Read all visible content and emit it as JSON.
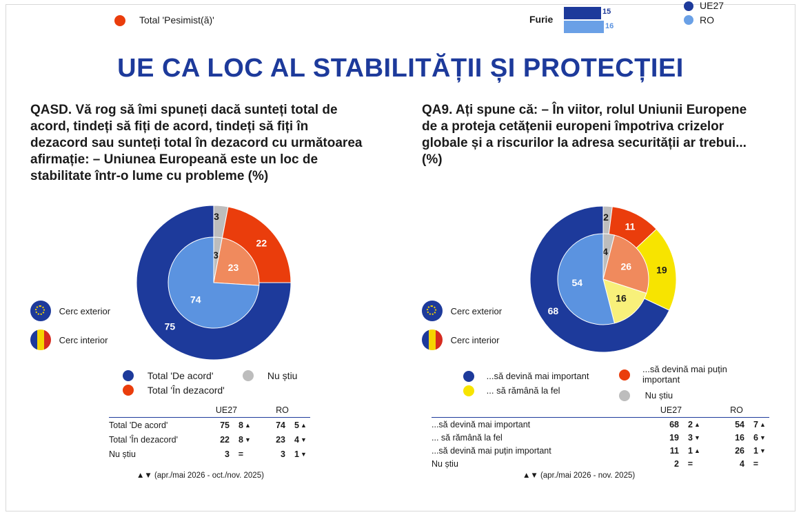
{
  "top": {
    "pessimist_label": "Total 'Pesimist(ă)'",
    "furie_label": "Furie",
    "furie_ue": "15",
    "furie_ro": "16",
    "legend_ue": "UE27",
    "legend_ro": "RO"
  },
  "title": "UE CA LOC AL STABILITĂȚII ȘI PROTECȚIEI",
  "left": {
    "question": "QASD. Vă rog să îmi spuneți dacă sunteți total de acord, tindeți să fiți de acord, tindeți să fiți în dezacord sau sunteți total în dezacord cu următoarea afirmație: – Uniunea Europeană este un loc de stabilitate într-o lume cu probleme (%)",
    "q_lines": [
      "QASD. Vă rog să îmi spuneți dacă sunteți total de",
      "acord, tindeți să fiți de acord, tindeți să fiți în",
      "dezacord sau sunteți total în dezacord cu următoarea",
      "afirmație: – Uniunea Europeană este un loc de",
      "stabilitate într-o lume cu probleme (%)"
    ],
    "outer_label": "Cerc exterior",
    "inner_label": "Cerc interior",
    "legend": [
      "Total 'De acord'",
      "Total 'În dezacord'",
      "Nu știu"
    ],
    "table": {
      "headers": [
        "UE27",
        "RO"
      ],
      "rows": [
        {
          "label": "Total 'De acord'",
          "ue": "75",
          "ue_ch": "8",
          "ue_ar": "▲",
          "ro": "74",
          "ro_ch": "5",
          "ro_ar": "▲"
        },
        {
          "label": "Total 'În dezacord'",
          "ue": "22",
          "ue_ch": "8",
          "ue_ar": "▼",
          "ro": "23",
          "ro_ch": "4",
          "ro_ar": "▼"
        },
        {
          "label": "Nu știu",
          "ue": "3",
          "ue_ch": "=",
          "ue_ar": "",
          "ro": "3",
          "ro_ch": "1",
          "ro_ar": "▼"
        }
      ],
      "footnote": "▲▼ (apr./mai 2026 - oct./nov. 2025)"
    }
  },
  "right": {
    "question": "QA9. Ați spune că: – În viitor, rolul Uniunii Europene de a proteja cetățenii europeni împotriva crizelor globale și a riscurilor la adresa securității ar trebui... (%)",
    "q_lines": [
      "QA9. Ați spune că: – În viitor, rolul Uniunii Europene",
      "de a proteja cetățenii europeni împotriva crizelor",
      "globale și a riscurilor la adresa securității ar trebui...",
      "(%)"
    ],
    "outer_label": "Cerc exterior",
    "inner_label": "Cerc interior",
    "legend": [
      "...să devină mai important",
      "... să rămână la fel",
      "...să devină mai puțin important",
      "Nu știu"
    ],
    "table": {
      "headers": [
        "UE27",
        "RO"
      ],
      "rows": [
        {
          "label": "...să devină mai important",
          "ue": "68",
          "ue_ch": "2",
          "ue_ar": "▲",
          "ro": "54",
          "ro_ch": "7",
          "ro_ar": "▲"
        },
        {
          "label": "... să rămână la fel",
          "ue": "19",
          "ue_ch": "3",
          "ue_ar": "▼",
          "ro": "16",
          "ro_ch": "6",
          "ro_ar": "▼"
        },
        {
          "label": "...să devină mai puțin important",
          "ue": "11",
          "ue_ch": "1",
          "ue_ar": "▲",
          "ro": "26",
          "ro_ch": "1",
          "ro_ar": "▼"
        },
        {
          "label": "Nu știu",
          "ue": "2",
          "ue_ch": "=",
          "ue_ar": "",
          "ro": "4",
          "ro_ch": "=",
          "ro_ar": ""
        }
      ],
      "footnote": "▲▼ (apr./mai 2026 - nov. 2025)"
    }
  },
  "colors": {
    "navy": "#1d3a9b",
    "light_blue": "#5b93e0",
    "orange_red": "#ea3d0c",
    "salmon": "#f08a5d",
    "yellow": "#f7e400",
    "light_yellow": "#f8f07a",
    "gray": "#bdbdbd",
    "title": "#1d3a9b"
  },
  "chart_data": [
    {
      "type": "pie",
      "variant": "nested-donut",
      "categories": [
        "Total 'De acord'",
        "Total 'În dezacord'",
        "Nu știu"
      ],
      "series": [
        {
          "name": "Cerc exterior",
          "values": [
            75,
            22,
            3
          ]
        },
        {
          "name": "Cerc interior",
          "values": [
            74,
            23,
            3
          ]
        }
      ]
    },
    {
      "type": "pie",
      "variant": "nested-donut",
      "categories": [
        "...să devină mai important",
        "... să rămână la fel",
        "...să devină mai puțin important",
        "Nu știu"
      ],
      "series": [
        {
          "name": "Cerc exterior",
          "values": [
            68,
            19,
            11,
            2
          ]
        },
        {
          "name": "Cerc interior",
          "values": [
            54,
            16,
            26,
            4
          ]
        }
      ]
    }
  ]
}
